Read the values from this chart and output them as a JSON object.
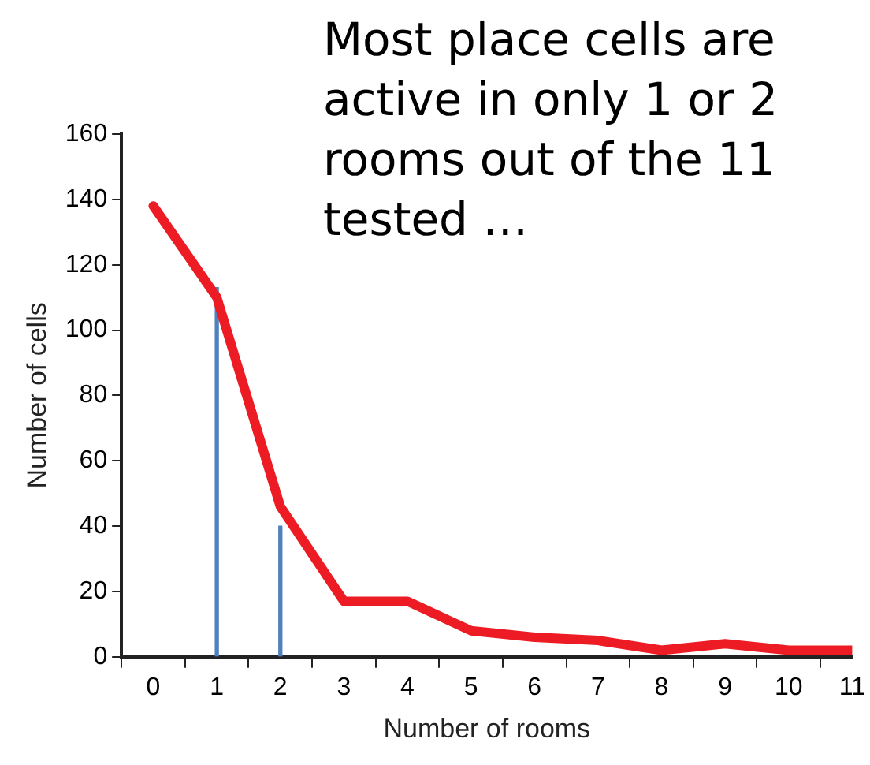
{
  "chart_data": {
    "type": "line",
    "title": "Most place cells are active in only 1 or 2 rooms out of the 11 tested …",
    "xlabel": "Number of rooms",
    "ylabel": "Number of cells",
    "x": [
      0,
      1,
      2,
      3,
      4,
      5,
      6,
      7,
      8,
      9,
      10,
      11
    ],
    "series": [
      {
        "color": "#ed1c24",
        "values": [
          138,
          110,
          46,
          17,
          17,
          8,
          6,
          5,
          2,
          4,
          2,
          2
        ]
      },
      {
        "type": "bar",
        "color": "#4f81bd",
        "x": [
          1,
          2
        ],
        "values": [
          113,
          40
        ]
      }
    ],
    "xlim": [
      -0.5,
      11
    ],
    "xticks": [
      0,
      1,
      2,
      3,
      4,
      5,
      6,
      7,
      8,
      9,
      10,
      11
    ],
    "ylim": [
      0,
      160
    ],
    "yticks": [
      0,
      20,
      40,
      60,
      80,
      100,
      120,
      140,
      160
    ],
    "grid": false,
    "legend": false,
    "marker": "none",
    "line_style": "solid"
  }
}
